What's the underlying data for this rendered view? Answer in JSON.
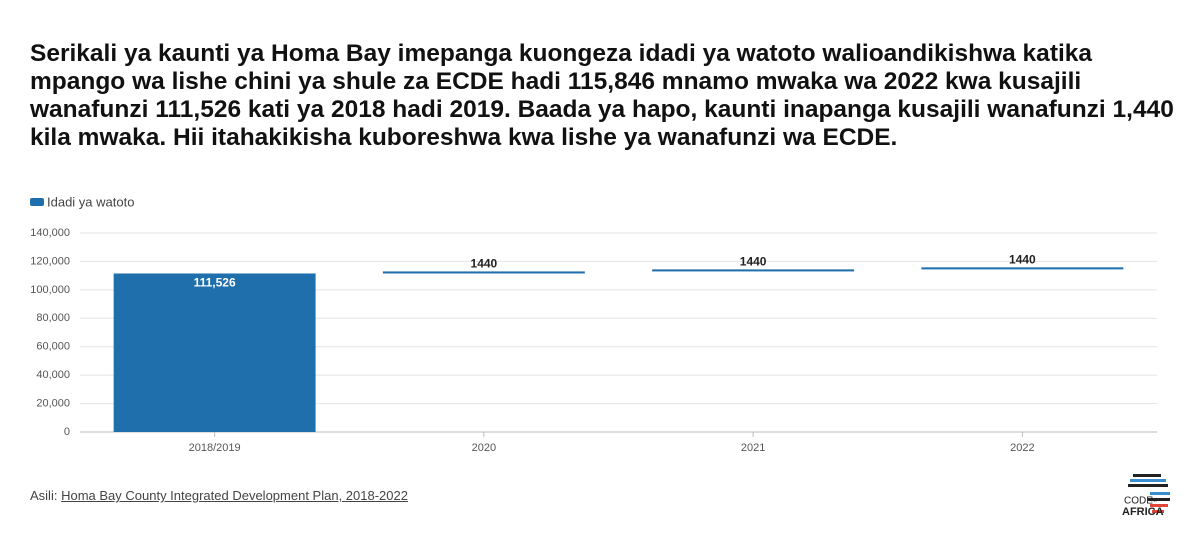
{
  "chart_data": {
    "type": "waterfall",
    "title": "Serikali ya kaunti ya Homa Bay imepanga kuongeza idadi ya watoto walioandikishwa katika mpango wa lishe chini ya shule za ECDE hadi 115,846 mnamo mwaka wa 2022 kwa kusajili wanafunzi 111,526 kati ya 2018 hadi 2019. Baada ya hapo, kaunti inapanga kusajili wanafunzi 1,440 kila mwaka. Hii itahakikisha kuboreshwa kwa lishe ya wanafunzi wa ECDE.",
    "categories": [
      "2018/2019",
      "2020",
      "2021",
      "2022"
    ],
    "series": [
      {
        "name": "Idadi ya watoto",
        "color": "#1f6fad",
        "values": [
          111526,
          1440,
          1440,
          1440
        ],
        "value_labels": [
          "111,526",
          "1440",
          "1440",
          "1440"
        ]
      }
    ],
    "ylim": [
      0,
      140000
    ],
    "yticks": [
      0,
      {
        "value": 20000,
        "label": "20,000"
      },
      {
        "value": 40000,
        "label": "40,000"
      },
      {
        "value": 60000,
        "label": "60,000"
      },
      {
        "value": 80000,
        "label": "80,000"
      },
      {
        "value": 100000,
        "label": "100,000"
      },
      {
        "value": 120000,
        "label": "120,000"
      },
      {
        "value": 140000,
        "label": "140,000"
      }
    ],
    "grid": true,
    "source_prefix": "Asili:",
    "source": "Homa Bay County Integrated Development Plan, 2018-2022",
    "logo": [
      "CODE",
      "for",
      "AFRICA"
    ]
  }
}
